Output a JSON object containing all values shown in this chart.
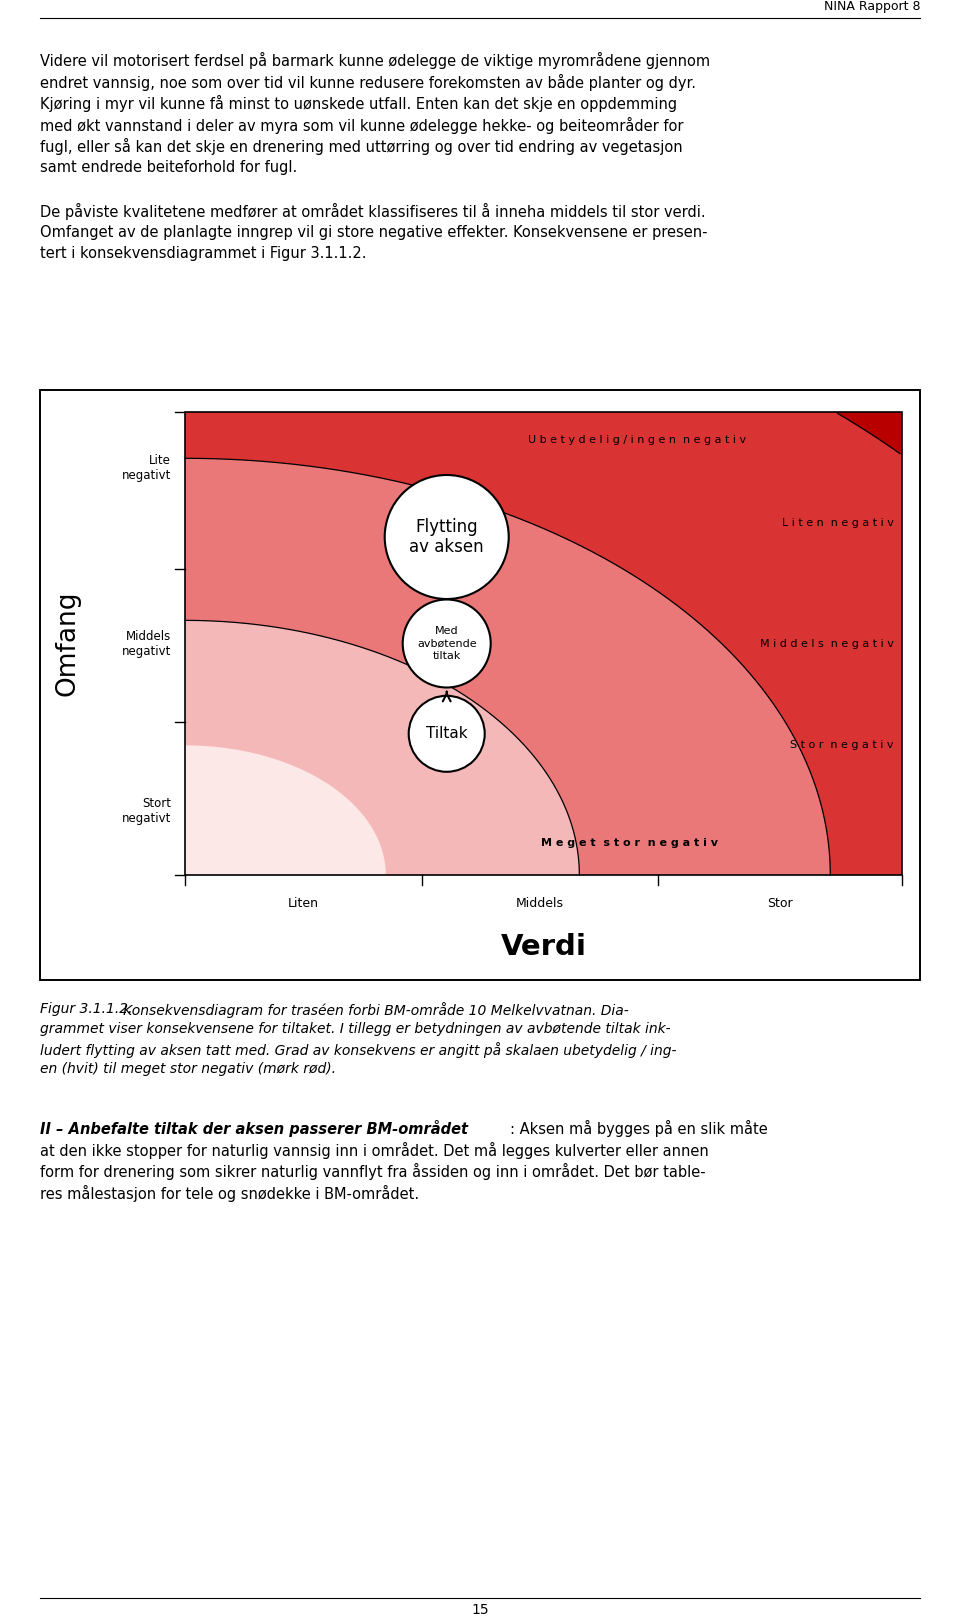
{
  "page_header": "NINA Rapport 8",
  "para1_lines": [
    "Videre vil motorisert ferdsel på barmark kunne ødelegge de viktige myrområdene gjennom",
    "endret vannsig, noe som over tid vil kunne redusere forekomsten av både planter og dyr.",
    "Kjøring i myr vil kunne få minst to uønskede utfall. Enten kan det skje en oppdemming",
    "med økt vannstand i deler av myra som vil kunne ødelegge hekke- og beiteområder for",
    "fugl, eller så kan det skje en drenering med uttørring og over tid endring av vegetasjon",
    "samt endrede beiteforhold for fugl."
  ],
  "para2_lines": [
    "De påviste kvalitetene medfører at området klassifiseres til å inneha middels til stor verdi.",
    "Omfanget av de planlagte inngrep vil gi store negative effekter. Konsekvensene er presen-",
    "tert i konsekvensdiagrammet i Figur 3.1.1.2."
  ],
  "zone_labels": [
    "Ubetydelig/ingen negativ",
    "Liten negativ",
    "Middels negativ",
    "Stor negativ",
    "Meget stor negativ"
  ],
  "y_labels": [
    [
      "Lite",
      "negativt"
    ],
    [
      "Middels",
      "negativt"
    ],
    [
      "Stort",
      "negativt"
    ]
  ],
  "x_labels": [
    "Liten",
    "Middels",
    "Stor"
  ],
  "ylabel": "Omfang",
  "xlabel": "Verdi",
  "circle1": "Flytting\nav aksen",
  "circle2_line1": "Med",
  "circle2_line2": "avbøtende",
  "circle2_line3": "tiltak",
  "circle3": "Tiltak",
  "caption_italic": "Figur 3.1.1.2.",
  "caption_rest": "   Konsekvensdiagram for traséen forbi BM-område 10 Melkelvvatnan. Dia-",
  "caption_lines": [
    "grammet viser konsekvensene for tiltaket. I tillegg er betydningen av avbøtende tiltak ink-",
    "ludert flytting av aksen tatt med. Grad av konsekvens er angitt på skalaen ubetydelig / ing-",
    "en (hvit) til meget stor negativ (mørk rød)."
  ],
  "para3_bold": "II – Anbefalte tiltak der aksen passerer BM-området",
  "para3_lines": [
    ": Aksen må bygges på en slik måte",
    "at den ikke stopper for naturlig vannsig inn i området. Det må legges kulverter eller annen",
    "form for drenering som sikrer naturlig vannflyt fra åssiden og inn i området. Det bør table-",
    "res målestasjon for tele og snødekke i BM-området."
  ],
  "page_number": "15",
  "color_ubetydelig": "#fde8e8",
  "color_liten": "#f5b8b8",
  "color_middels": "#eb7878",
  "color_stor": "#d93333",
  "color_megetStor": "#b80000",
  "bg_color": "#ffffff"
}
